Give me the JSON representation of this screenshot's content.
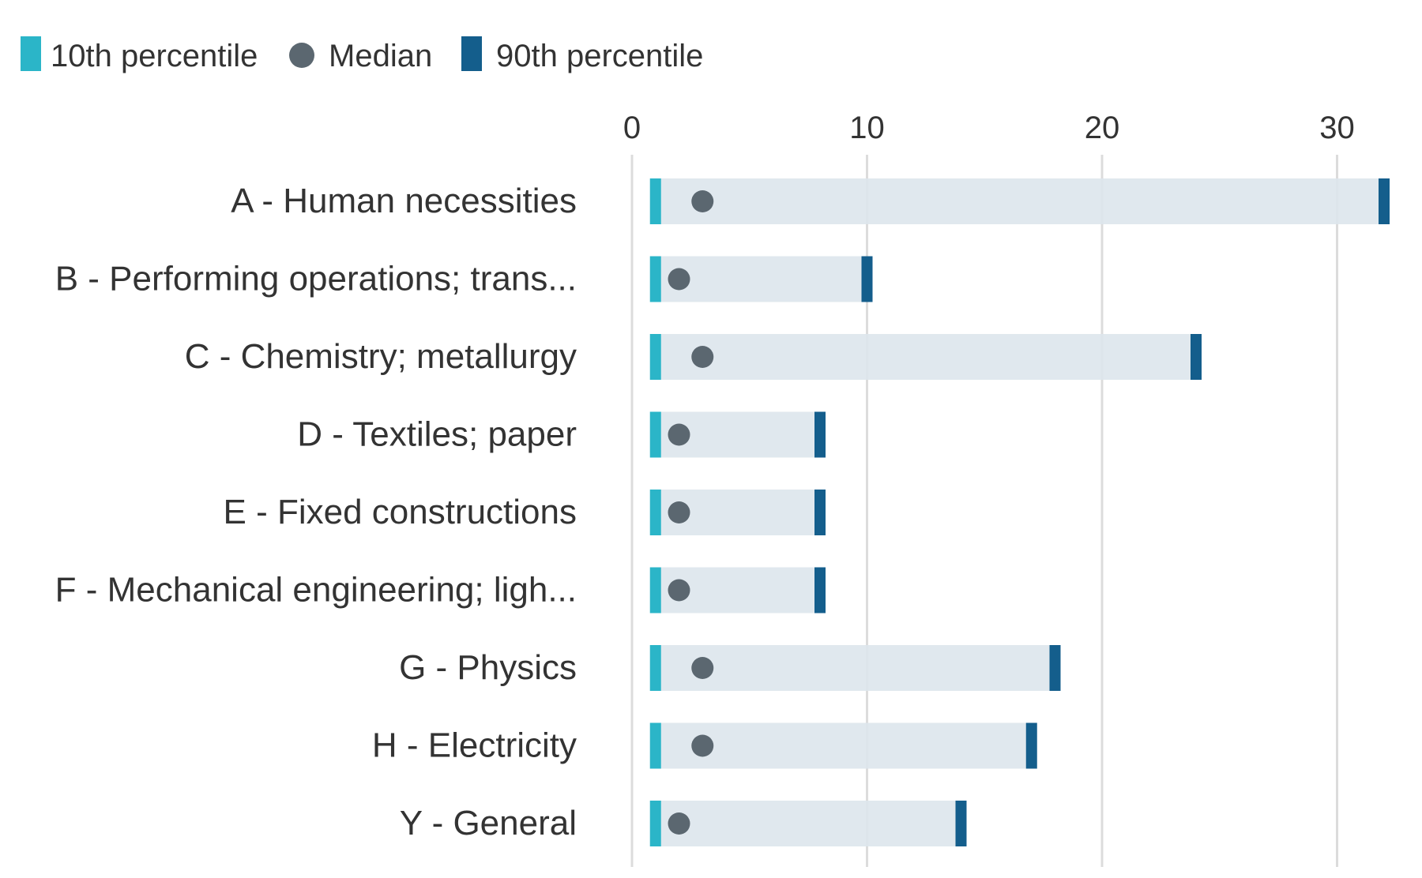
{
  "chart_data": {
    "type": "range-dot",
    "orientation": "horizontal",
    "legend": {
      "position": "top-left",
      "items": [
        {
          "key": "p10",
          "label": "10th percentile",
          "shape": "bar",
          "color": "#2bb5c8"
        },
        {
          "key": "median",
          "label": "Median",
          "shape": "dot",
          "color": "#5b6770"
        },
        {
          "key": "p90",
          "label": "90th percentile",
          "shape": "bar",
          "color": "#145e8c"
        }
      ]
    },
    "x_axis": {
      "position": "top",
      "ticks": [
        0,
        10,
        20,
        30
      ],
      "tick_labels": [
        "0",
        "10",
        "20",
        "30"
      ],
      "range": [
        0,
        32.5
      ],
      "grid": true
    },
    "categories": [
      "A - Human necessities",
      "B - Performing operations; trans...",
      "C - Chemistry; metallurgy",
      "D - Textiles; paper",
      "E - Fixed constructions",
      "F - Mechanical engineering; ligh...",
      "G - Physics",
      "H - Electricity",
      "Y - General"
    ],
    "series": [
      {
        "name": "10th percentile",
        "values": [
          1,
          1,
          1,
          1,
          1,
          1,
          1,
          1,
          1
        ]
      },
      {
        "name": "Median",
        "values": [
          3,
          2,
          3,
          2,
          2,
          2,
          3,
          3,
          2
        ]
      },
      {
        "name": "90th percentile",
        "values": [
          32,
          10,
          24,
          8,
          8,
          8,
          18,
          17,
          14
        ]
      }
    ],
    "colors": {
      "range_bar": "#dde6ec",
      "grid": "#dcdcdc",
      "text": "#333333"
    }
  }
}
